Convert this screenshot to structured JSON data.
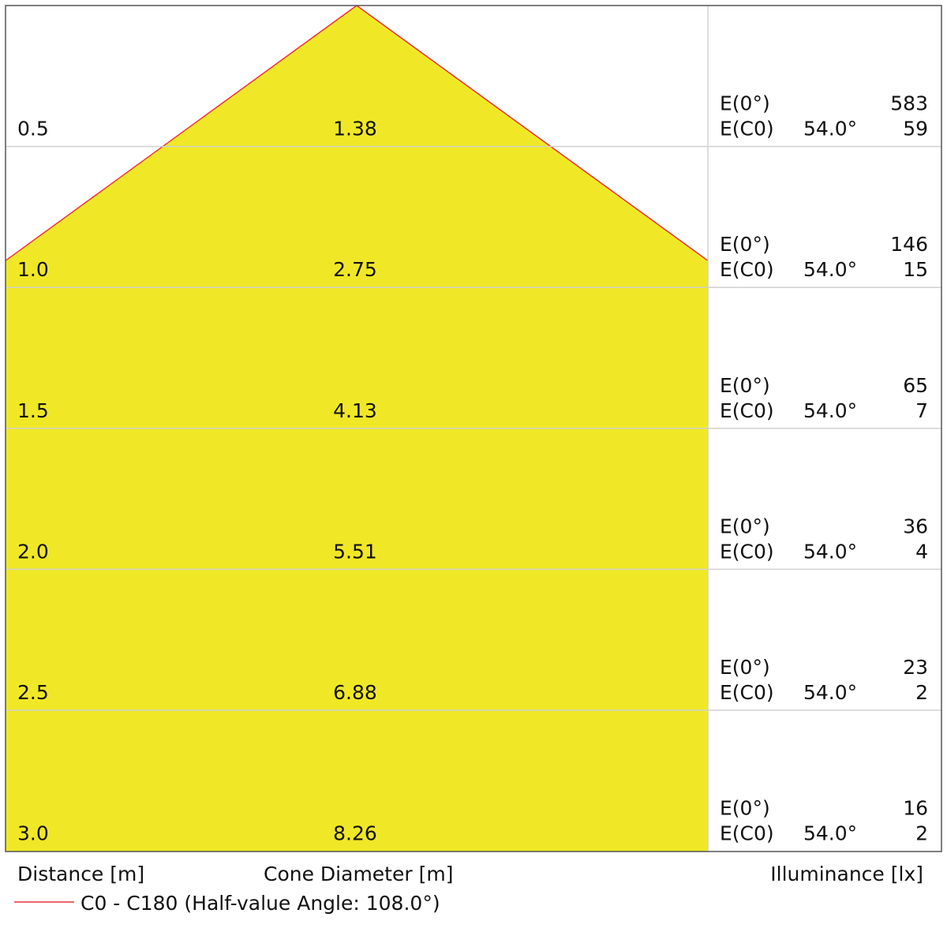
{
  "chart_data": {
    "type": "cone-diagram",
    "rows": [
      {
        "distance": "0.5",
        "diameter": "1.38",
        "e0_label": "E(0°)",
        "e0_value": "583",
        "ec0_label": "E(C0)",
        "ec0_angle": "54.0°",
        "ec0_value": "59"
      },
      {
        "distance": "1.0",
        "diameter": "2.75",
        "e0_label": "E(0°)",
        "e0_value": "146",
        "ec0_label": "E(C0)",
        "ec0_angle": "54.0°",
        "ec0_value": "15"
      },
      {
        "distance": "1.5",
        "diameter": "4.13",
        "e0_label": "E(0°)",
        "e0_value": "65",
        "ec0_label": "E(C0)",
        "ec0_angle": "54.0°",
        "ec0_value": "7"
      },
      {
        "distance": "2.0",
        "diameter": "5.51",
        "e0_label": "E(0°)",
        "e0_value": "36",
        "ec0_label": "E(C0)",
        "ec0_angle": "54.0°",
        "ec0_value": "4"
      },
      {
        "distance": "2.5",
        "diameter": "6.88",
        "e0_label": "E(0°)",
        "e0_value": "23",
        "ec0_label": "E(C0)",
        "ec0_angle": "54.0°",
        "ec0_value": "2"
      },
      {
        "distance": "3.0",
        "diameter": "8.26",
        "e0_label": "E(0°)",
        "e0_value": "16",
        "ec0_label": "E(C0)",
        "ec0_angle": "54.0°",
        "ec0_value": "2"
      }
    ],
    "half_value_angle_deg": 108.0,
    "xlabel_distance": "Distance [m]",
    "xlabel_diameter": "Cone Diameter [m]",
    "xlabel_illuminance": "Illuminance [lx]",
    "legend": "C0 - C180 (Half-value Angle: 108.0°)",
    "colors": {
      "cone_fill": "#f0e826",
      "cone_edge": "#e8323c",
      "grid": "#d0d0d0",
      "frame": "#555555"
    }
  }
}
